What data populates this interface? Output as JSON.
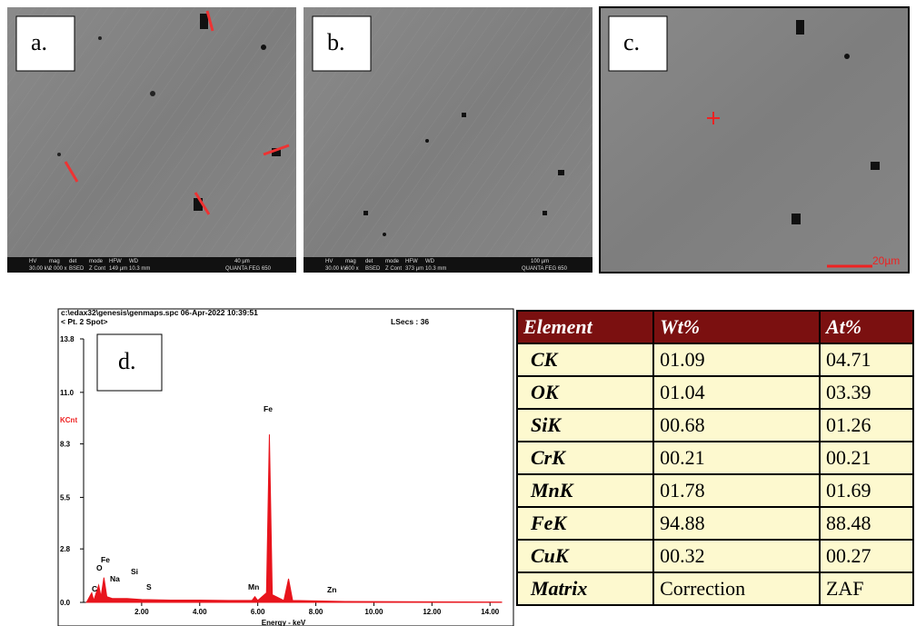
{
  "panels": [
    {
      "label": "a.",
      "info": [
        "HV",
        "30.00 kV",
        "mag",
        "2 000 x",
        "det",
        "BSED",
        "mode",
        "Z Cont",
        "HFW",
        "149 µm",
        "WD",
        "10.3 mm",
        "40 µm",
        "QUANTA FEG 650"
      ]
    },
    {
      "label": "b.",
      "info": [
        "HV",
        "30.00 kV",
        "mag",
        "600 x",
        "det",
        "BSED",
        "mode",
        "Z Cont",
        "HFW",
        "373 µm",
        "WD",
        "10.3 mm",
        "100 µm",
        "QUANTA FEG 650"
      ]
    },
    {
      "label": "c.",
      "scale": "20µm"
    }
  ],
  "chart_data": {
    "type": "spectrum",
    "label": "d.",
    "header": [
      "c:\\edax32\\genesis\\genmaps.spc  06-Apr-2022 10:39:51",
      "< Pt. 2 Spot>",
      "LSecs : 36"
    ],
    "y_label": "KCnt",
    "x_label": "Energy - keV",
    "color": "#e8141c",
    "x": [
      0.1,
      0.28,
      0.35,
      0.52,
      0.6,
      0.7,
      0.8,
      1.0,
      1.5,
      2.0,
      3.0,
      4.0,
      5.0,
      5.8,
      5.9,
      6.0,
      6.3,
      6.4,
      6.5,
      6.9,
      7.06,
      7.2,
      8.0,
      9.0,
      10.0,
      12.0,
      14.4
    ],
    "values": [
      0,
      0.5,
      0.1,
      0.9,
      0.3,
      1.3,
      0.3,
      0.2,
      0.2,
      0.15,
      0.12,
      0.12,
      0.1,
      0.1,
      0.3,
      0.1,
      0.5,
      8.8,
      0.4,
      0.1,
      1.24,
      0.1,
      0.08,
      0.05,
      0.04,
      0.03,
      0.02
    ],
    "xlim": [
      0,
      14.4
    ],
    "ylim": [
      0,
      13.8
    ],
    "xticks": [
      {
        "value": 2,
        "label": "2.00"
      },
      {
        "value": 4,
        "label": "4.00"
      },
      {
        "value": 6,
        "label": "6.00"
      },
      {
        "value": 8,
        "label": "8.00"
      },
      {
        "value": 10,
        "label": "10.00"
      },
      {
        "value": 12,
        "label": "12.00"
      },
      {
        "value": 14,
        "label": "14.00"
      }
    ],
    "yticks": [
      {
        "value": 0,
        "label": "0.0"
      },
      2.8,
      5.5,
      8.3,
      {
        "value": 11,
        "label": "11.0"
      },
      13.8
    ],
    "annotations": [
      "C",
      "O",
      "Fe",
      "Na",
      "Si",
      "S",
      "Mn",
      "Fe",
      "Zn"
    ]
  },
  "table": {
    "header": [
      "Element",
      "Wt%",
      "At%"
    ],
    "rows": [
      [
        "CK",
        "01.09",
        "04.71"
      ],
      [
        "OK",
        "01.04",
        "03.39"
      ],
      [
        "SiK",
        "00.68",
        "01.26"
      ],
      [
        "CrK",
        "00.21",
        "00.21"
      ],
      [
        "MnK",
        "01.78",
        "01.69"
      ],
      [
        "FeK",
        "94.88",
        "88.48"
      ],
      [
        "CuK",
        "00.32",
        "00.27"
      ],
      [
        "Matrix",
        "Correction",
        "ZAF"
      ]
    ]
  }
}
